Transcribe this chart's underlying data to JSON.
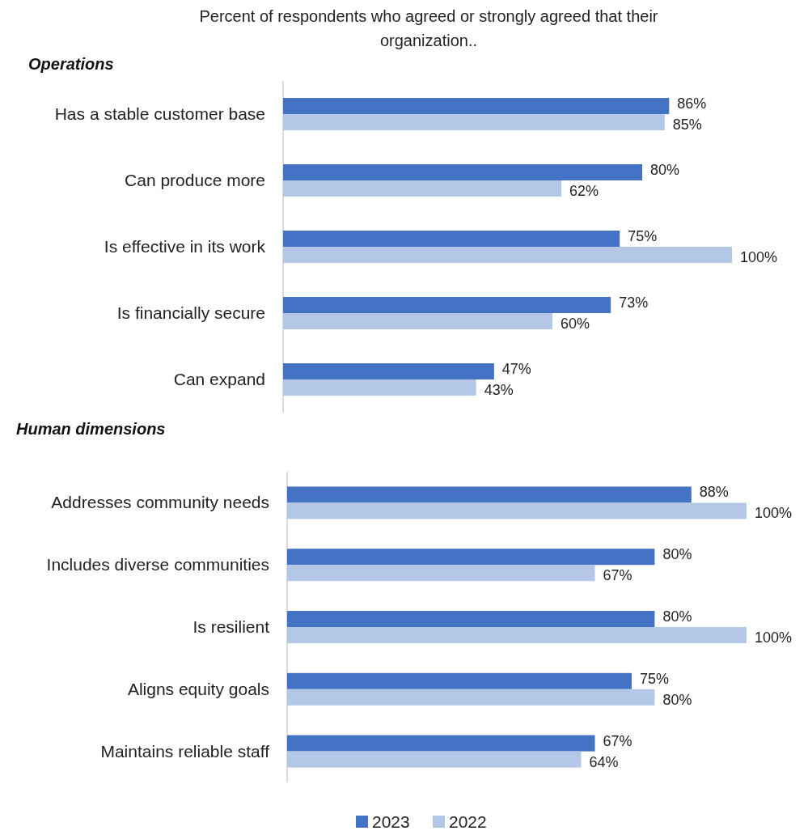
{
  "chart_data": [
    {
      "type": "bar",
      "orientation": "horizontal",
      "title": "Percent of respondents who agreed or strongly agreed that their organization..",
      "subtitle": "Operations",
      "categories": [
        "Has a stable customer base",
        "Can produce more",
        "Is effective in its work",
        "Is financially secure",
        "Can expand"
      ],
      "series": [
        {
          "color": "#4472c4",
          "values": [
            86,
            80,
            75,
            73,
            47
          ],
          "value_labels": [
            "86%",
            "80%",
            "75%",
            "73%",
            "47%"
          ]
        },
        {
          "color": "#b4c7e7",
          "values": [
            85,
            62,
            100,
            60,
            43
          ],
          "value_labels": [
            "85%",
            "62%",
            "100%",
            "60%",
            "43%"
          ]
        }
      ],
      "legend": false
    },
    {
      "type": "bar",
      "orientation": "horizontal",
      "subtitle": "Human dimensions",
      "categories": [
        "Addresses community needs",
        "Includes diverse communities",
        "Is resilient",
        "Aligns equity goals",
        "Maintains reliable staff"
      ],
      "series": [
        {
          "name": "2023",
          "color": "#4472c4",
          "values": [
            88,
            80,
            80,
            75,
            67
          ],
          "value_labels": [
            "88%",
            "80%",
            "80%",
            "75%",
            "67%"
          ]
        },
        {
          "name": "2022",
          "color": "#b4c7e7",
          "values": [
            100,
            67,
            100,
            80,
            64
          ],
          "value_labels": [
            "100%",
            "67%",
            "100%",
            "80%",
            "64%"
          ]
        }
      ],
      "legend": "bottom"
    }
  ]
}
